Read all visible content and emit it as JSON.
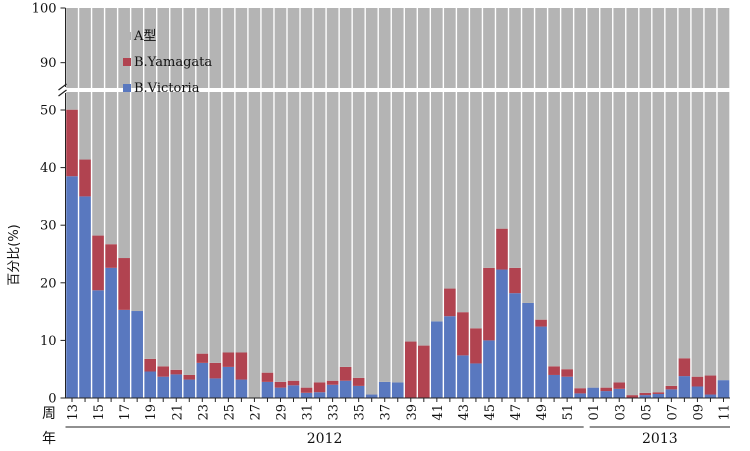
{
  "chart_data": {
    "type": "bar",
    "stacked": true,
    "percent_stacked": true,
    "ylabel": "百分比(%)",
    "xlabel_week": "周",
    "xlabel_year": "年",
    "ylim_lower": [
      0,
      50
    ],
    "ylim_upper": [
      85,
      100
    ],
    "y_ticks_lower": [
      0,
      10,
      20,
      30,
      40,
      50
    ],
    "y_ticks_upper": [
      90,
      100
    ],
    "axis_break": true,
    "grid": false,
    "legend_position": "top-left",
    "legend": [
      {
        "name": "A型",
        "color": "#b4b4b4"
      },
      {
        "name": "B.Yamagata",
        "color": "#b14350"
      },
      {
        "name": "B.Victoria",
        "color": "#5978bf"
      }
    ],
    "categories": [
      "13",
      "14",
      "15",
      "16",
      "17",
      "18",
      "19",
      "20",
      "21",
      "22",
      "23",
      "24",
      "25",
      "26",
      "27",
      "28",
      "29",
      "30",
      "31",
      "32",
      "33",
      "34",
      "35",
      "36",
      "37",
      "38",
      "39",
      "40",
      "41",
      "42",
      "43",
      "44",
      "45",
      "46",
      "47",
      "48",
      "49",
      "50",
      "51",
      "52",
      "01",
      "02",
      "03",
      "04",
      "05",
      "06",
      "07",
      "08",
      "09",
      "10",
      "11"
    ],
    "tick_labels_shown": [
      "13",
      "15",
      "17",
      "19",
      "21",
      "23",
      "25",
      "27",
      "29",
      "31",
      "33",
      "35",
      "37",
      "39",
      "41",
      "43",
      "45",
      "47",
      "49",
      "51",
      "01",
      "03",
      "05",
      "07",
      "09",
      "11"
    ],
    "series": [
      {
        "name": "B.Victoria",
        "values": [
          38.5,
          35,
          18.7,
          22.6,
          15.3,
          15.1,
          4.6,
          3.7,
          4.1,
          3.2,
          6.1,
          3.4,
          5.4,
          3.2,
          0,
          2.8,
          1.8,
          2.2,
          0.9,
          1,
          2.3,
          3,
          2.1,
          0.6,
          2.8,
          2.7,
          0,
          0,
          13.3,
          14.2,
          7.4,
          6,
          10,
          22.3,
          18.2,
          16.5,
          12.4,
          4,
          3.7,
          0.8,
          1.8,
          1.2,
          1.6,
          0,
          0.5,
          0.7,
          1.5,
          3.8,
          2,
          0.6,
          3.1
        ]
      },
      {
        "name": "B.Yamagata",
        "values": [
          12.1,
          6.4,
          9.5,
          4.1,
          9,
          0,
          2.2,
          1.8,
          0.8,
          0.8,
          1.6,
          2.7,
          2.5,
          4.7,
          0,
          1.6,
          1,
          0.8,
          0.9,
          1.7,
          0.7,
          2.4,
          1.4,
          0,
          0,
          0,
          9.8,
          9.1,
          0,
          4.8,
          7.5,
          6.1,
          12.6,
          7.1,
          4.4,
          0,
          1.2,
          1.5,
          1.3,
          0.9,
          0,
          0.6,
          1.1,
          0.5,
          0.4,
          0.3,
          0.6,
          3.1,
          1.7,
          3.3,
          0
        ]
      },
      {
        "name": "A型",
        "values": [
          49.4,
          58.6,
          71.8,
          73.3,
          75.7,
          84.9,
          93.2,
          94.5,
          95.1,
          96,
          92.3,
          93.9,
          92.1,
          92.1,
          100,
          95.6,
          97.2,
          97,
          98.2,
          97.3,
          97,
          94.6,
          96.5,
          99.4,
          97.2,
          97.3,
          90.2,
          90.9,
          86.7,
          81,
          85.1,
          87.9,
          77.4,
          70.6,
          77.4,
          83.5,
          86.4,
          94.5,
          95,
          98.3,
          98.2,
          98.2,
          97.3,
          99.5,
          99.1,
          99,
          97.9,
          93.1,
          96.3,
          96.1,
          96.9
        ]
      }
    ],
    "year_groups": [
      {
        "label": "2012",
        "from": "13",
        "to": "52"
      },
      {
        "label": "2013",
        "from": "01",
        "to": "11"
      }
    ]
  }
}
